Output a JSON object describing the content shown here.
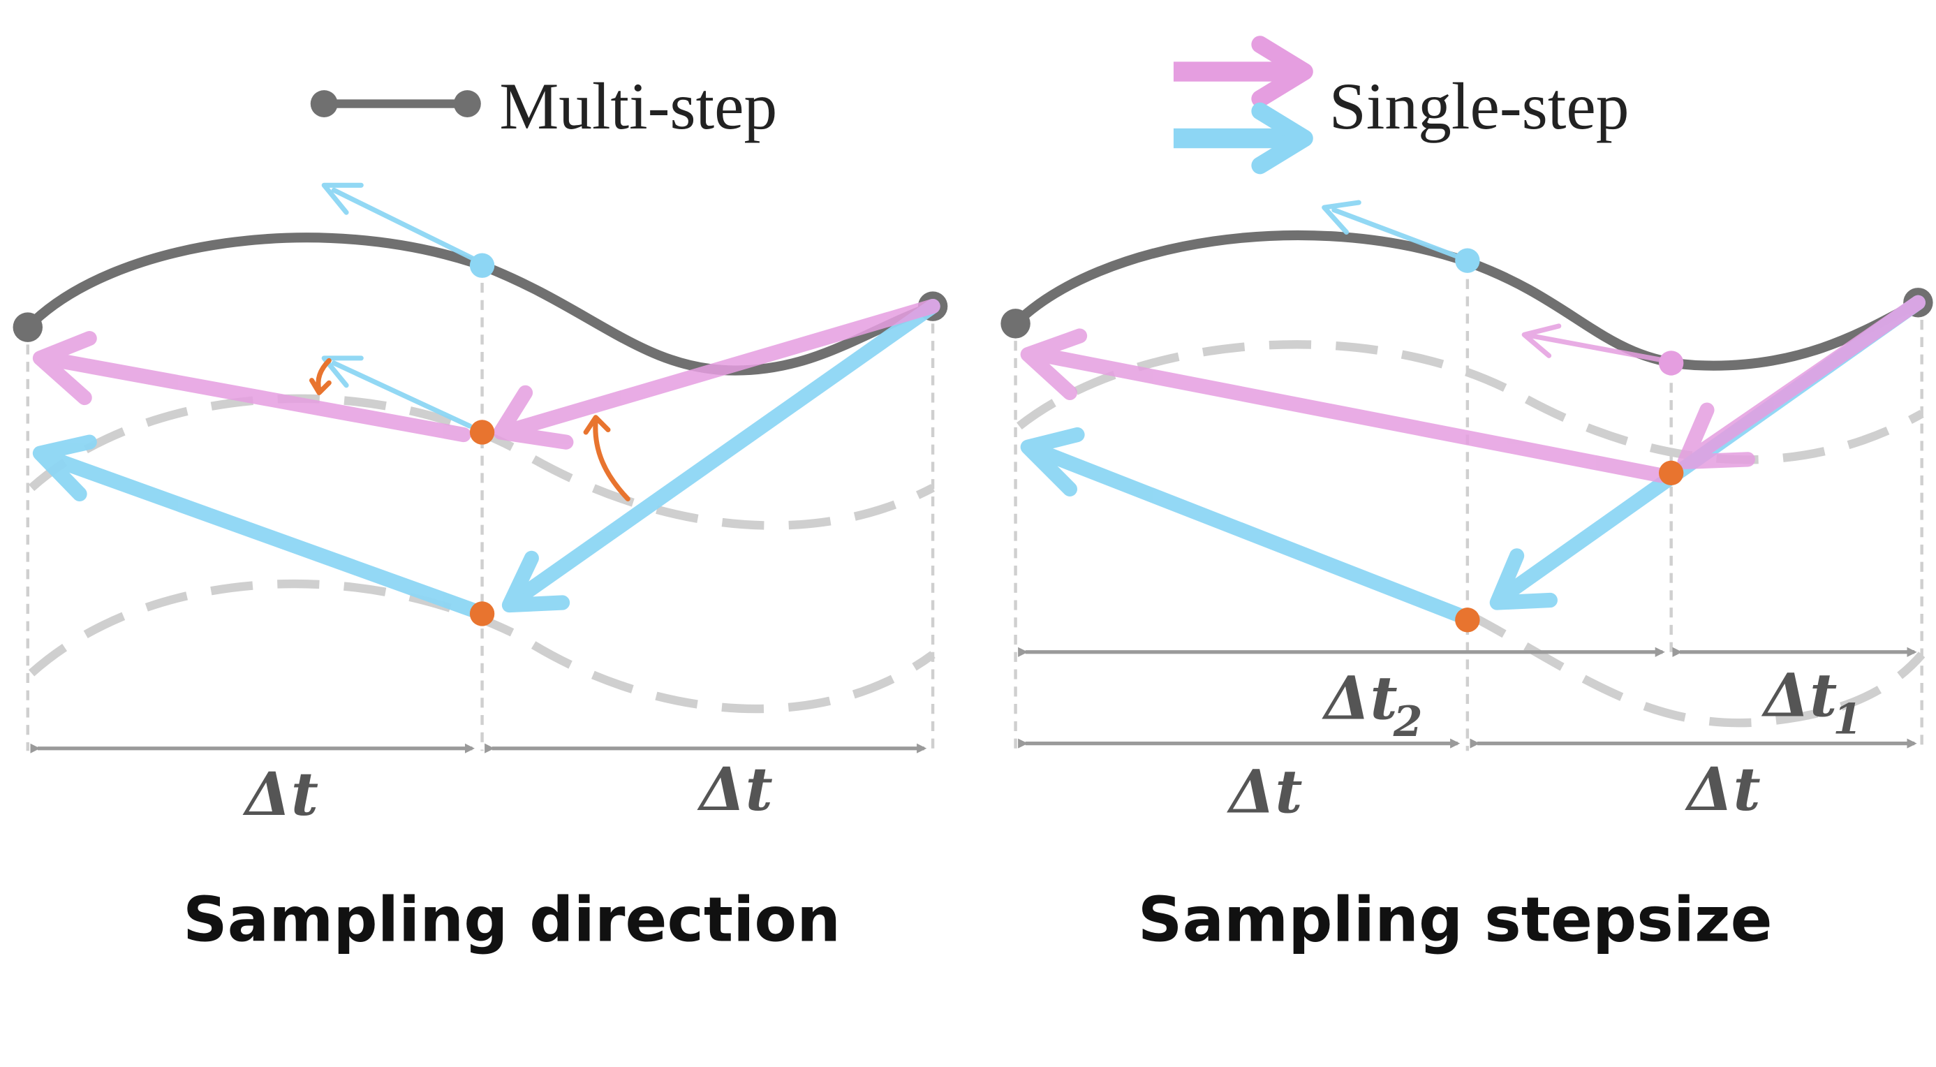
{
  "legend": {
    "multi_step": "Multi-step",
    "single_step": "Single-step"
  },
  "panels": {
    "direction": {
      "caption": "Sampling direction",
      "delta_left": "Δt",
      "delta_right": "Δt"
    },
    "stepsize": {
      "caption": "Sampling stepsize",
      "delta_left": "Δt",
      "delta_right": "Δt",
      "delta_t1": "Δt",
      "delta_t1_sub": "1",
      "delta_t2": "Δt",
      "delta_t2_sub": "2"
    }
  },
  "colors": {
    "trajectory": "#707070",
    "pink": "#e59ee0",
    "blue": "#8dd6f4",
    "point": "#e8742f",
    "dashed": "#cfcfcf",
    "axis": "#9a9a9a",
    "text": "#222222"
  }
}
